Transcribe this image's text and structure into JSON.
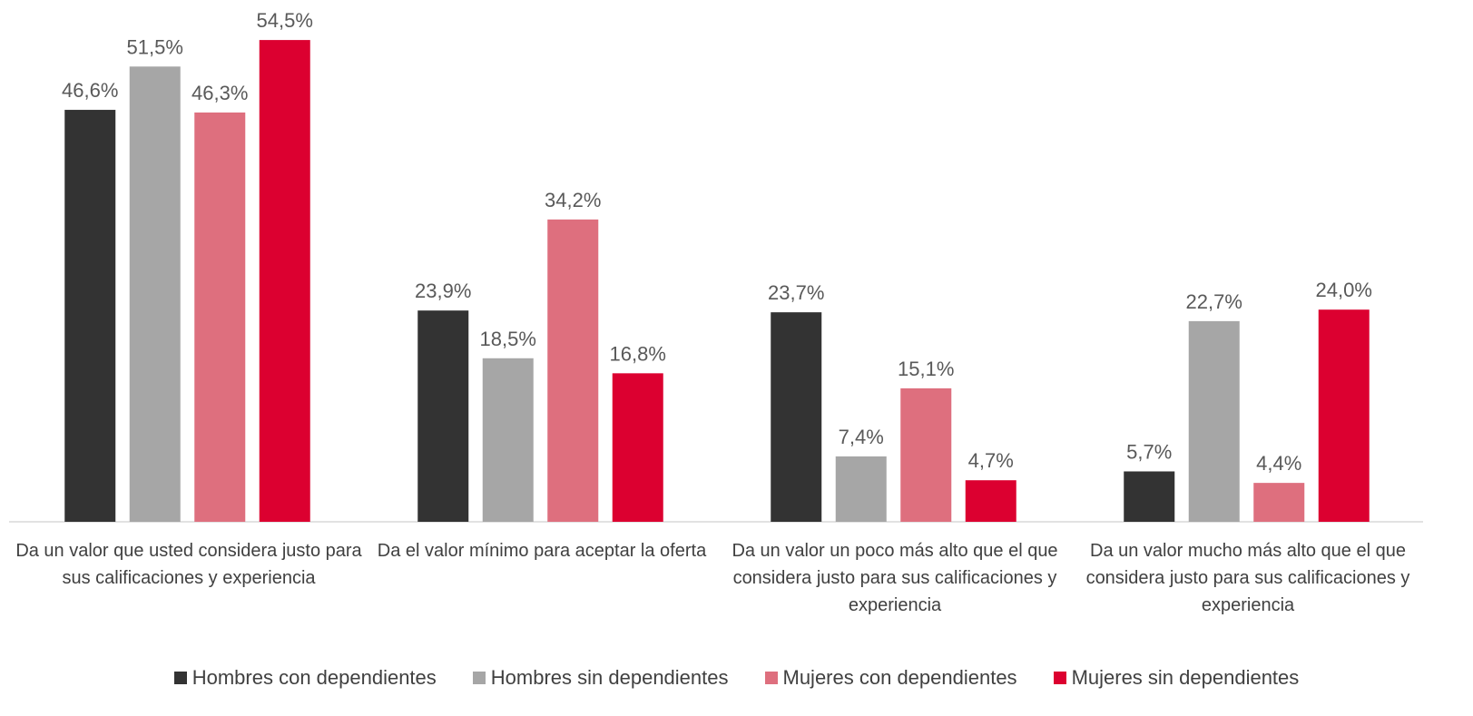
{
  "chart_data": {
    "type": "bar",
    "categories": [
      "Da un valor que usted considera justo para sus calificaciones y experiencia",
      "Da el valor mínimo para aceptar la oferta",
      "Da un valor un poco más alto que el que considera justo para sus calificaciones y experiencia",
      "Da un valor mucho más alto que el que considera justo para sus calificaciones y experiencia"
    ],
    "series": [
      {
        "name": "Hombres con dependientes",
        "color": "#333333",
        "values": [
          46.6,
          23.9,
          23.7,
          5.7
        ],
        "value_labels": [
          "46,6%",
          "23,9%",
          "23,7%",
          "5,7%"
        ]
      },
      {
        "name": "Hombres sin dependientes",
        "color": "#a6a6a6",
        "values": [
          51.5,
          18.5,
          7.4,
          22.7
        ],
        "value_labels": [
          "51,5%",
          "18,5%",
          "7,4%",
          "22,7%"
        ]
      },
      {
        "name": "Mujeres con dependientes",
        "color": "#de6f7e",
        "values": [
          46.3,
          34.2,
          15.1,
          4.4
        ],
        "value_labels": [
          "46,3%",
          "34,2%",
          "15,1%",
          "4,4%"
        ]
      },
      {
        "name": "Mujeres sin dependientes",
        "color": "#dc0030",
        "values": [
          54.5,
          16.8,
          4.7,
          24.0
        ],
        "value_labels": [
          "54,5%",
          "16,8%",
          "4,7%",
          "24,0%"
        ]
      }
    ],
    "ylim": [
      0,
      58
    ],
    "legend": "bottom"
  }
}
